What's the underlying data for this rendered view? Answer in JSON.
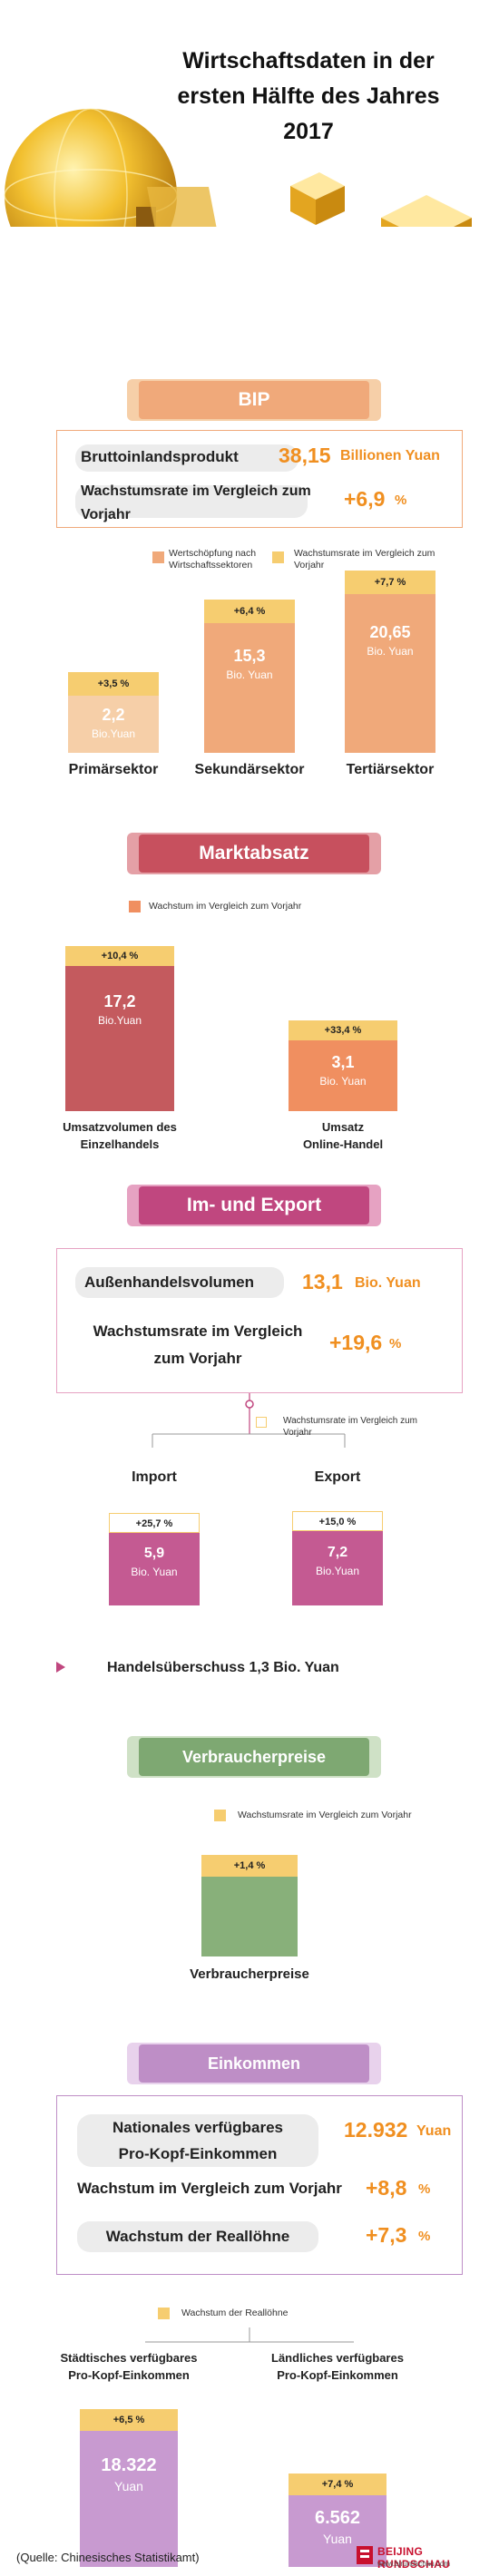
{
  "header": {
    "title_line1": "Wirtschaftsdaten in der",
    "title_line2": "ersten Hälfte des Jahres",
    "title_line3": "2017"
  },
  "colors": {
    "bip": "#f0a97a",
    "bip_light": "#f6cfa8",
    "growth": "#f6cd70",
    "markt": "#c7505e",
    "markt_bar": "#c45a5e",
    "online_bar": "#f08f60",
    "export": "#c0477f",
    "export_bar": "#c45a92",
    "vpi": "#7ea872",
    "vpi_bar": "#88b07a",
    "eink": "#be8ec6",
    "eink_bar": "#c89ad0"
  },
  "bip": {
    "heading": "BIP",
    "gdp_label": "Bruttoinlandsprodukt",
    "gdp_value": "38,15",
    "gdp_unit": "Billionen Yuan",
    "growth_label_1": "Wachstumsrate im Vergleich zum",
    "growth_label_2": "Vorjahr",
    "growth_value": "+6,9",
    "growth_unit": "%",
    "legend_value_added_1": "Wertschöpfung nach",
    "legend_value_added_2": "Wirtschaftssektoren",
    "legend_growth_1": "Wachstumsrate im Vergleich zum",
    "legend_growth_2": "Vorjahr"
  },
  "markt": {
    "heading": "Marktabsatz",
    "legend": "Wachstum im Vergleich zum Vorjahr"
  },
  "export": {
    "heading": "Im- und Export",
    "volume_label": "Außenhandelsvolumen",
    "volume_value": "13,1",
    "volume_unit": "Bio. Yuan",
    "growth_label_1": "Wachstumsrate im Vergleich",
    "growth_label_2": "zum Vorjahr",
    "growth_value": "+19,6",
    "growth_unit": "%",
    "legend_1": "Wachstumsrate im Vergleich zum",
    "legend_2": "Vorjahr",
    "import_label": "Import",
    "export_label": "Export",
    "surplus": "Handelsüberschuss 1,3 Bio. Yuan"
  },
  "vpi": {
    "heading": "Verbraucherpreise",
    "legend": "Wachstumsrate im Vergleich zum Vorjahr"
  },
  "einkommen": {
    "heading": "Einkommen",
    "national_label_1": "Nationales verfügbares",
    "national_label_2": "Pro-Kopf-Einkommen",
    "national_value": "12.932",
    "national_unit": "Yuan",
    "growth_label": "Wachstum im Vergleich zum Vorjahr",
    "growth_value": "+8,8",
    "growth_unit": "%",
    "real_label": "Wachstum der Reallöhne",
    "real_value": "+7,3",
    "real_unit": "%",
    "legend": "Wachstum der Reallöhne"
  },
  "footer": {
    "source": "(Quelle: Chinesisches Statistikamt)",
    "logo_text": "BEIJING RUNDSCHAU",
    "logo_url": "www.bjrundschau.com"
  },
  "chart_data": [
    {
      "type": "bar",
      "categories": [
        "Primärsektor",
        "Sekundärsektor",
        "Tertiärsektor"
      ],
      "series": [
        {
          "name": "Wertschöpfung nach Wirtschaftssektoren",
          "values": [
            2.2,
            15.3,
            20.65
          ],
          "labels": [
            "2,2",
            "15,3",
            "20,65"
          ],
          "units": [
            "Bio.Yuan",
            "Bio. Yuan",
            "Bio. Yuan"
          ]
        },
        {
          "name": "Wachstumsrate im Vergleich zum Vorjahr",
          "values": [
            3.5,
            6.4,
            7.7
          ],
          "labels": [
            "+3,5 %",
            "+6,4 %",
            "+7,7 %"
          ]
        }
      ]
    },
    {
      "type": "bar",
      "categories": [
        "Umsatzvolumen des Einzelhandels",
        "Umsatz Online-Handel"
      ],
      "category_lines": [
        [
          "Umsatzvolumen des",
          "Einzelhandels"
        ],
        [
          "Umsatz",
          "Online-Handel"
        ]
      ],
      "series": [
        {
          "values": [
            17.2,
            3.1
          ],
          "labels": [
            "17,2",
            "3,1"
          ],
          "units": [
            "Bio.Yuan",
            "Bio. Yuan"
          ]
        },
        {
          "name": "Wachstum im Vergleich zum Vorjahr",
          "values": [
            10.4,
            33.4
          ],
          "labels": [
            "+10,4 %",
            "+33,4 %"
          ]
        }
      ]
    },
    {
      "type": "bar",
      "categories": [
        "Import",
        "Export"
      ],
      "series": [
        {
          "values": [
            5.9,
            7.2
          ],
          "labels": [
            "5,9",
            "7,2"
          ],
          "units": [
            "Bio. Yuan",
            "Bio.Yuan"
          ]
        },
        {
          "name": "Wachstumsrate im Vergleich zum Vorjahr",
          "values": [
            25.7,
            15.0
          ],
          "labels": [
            "+25,7 %",
            "+15,0 %"
          ]
        }
      ]
    },
    {
      "type": "bar",
      "categories": [
        "Verbraucherpreise"
      ],
      "series": [
        {
          "name": "Wachstumsrate im Vergleich zum Vorjahr",
          "values": [
            1.4
          ],
          "labels": [
            "+1,4 %"
          ]
        }
      ]
    },
    {
      "type": "bar",
      "categories": [
        "Städtisches verfügbares Pro-Kopf-Einkommen",
        "Ländliches verfügbares Pro-Kopf-Einkommen"
      ],
      "category_lines": [
        [
          "Städtisches verfügbares",
          "Pro-Kopf-Einkommen"
        ],
        [
          "Ländliches verfügbares",
          "Pro-Kopf-Einkommen"
        ]
      ],
      "series": [
        {
          "values": [
            18322,
            6562
          ],
          "labels": [
            "18.322",
            "6.562"
          ],
          "units": [
            "Yuan",
            "Yuan"
          ]
        },
        {
          "name": "Wachstum der Reallöhne",
          "values": [
            6.5,
            7.4
          ],
          "labels": [
            "+6,5 %",
            "+7,4 %"
          ]
        }
      ]
    }
  ]
}
